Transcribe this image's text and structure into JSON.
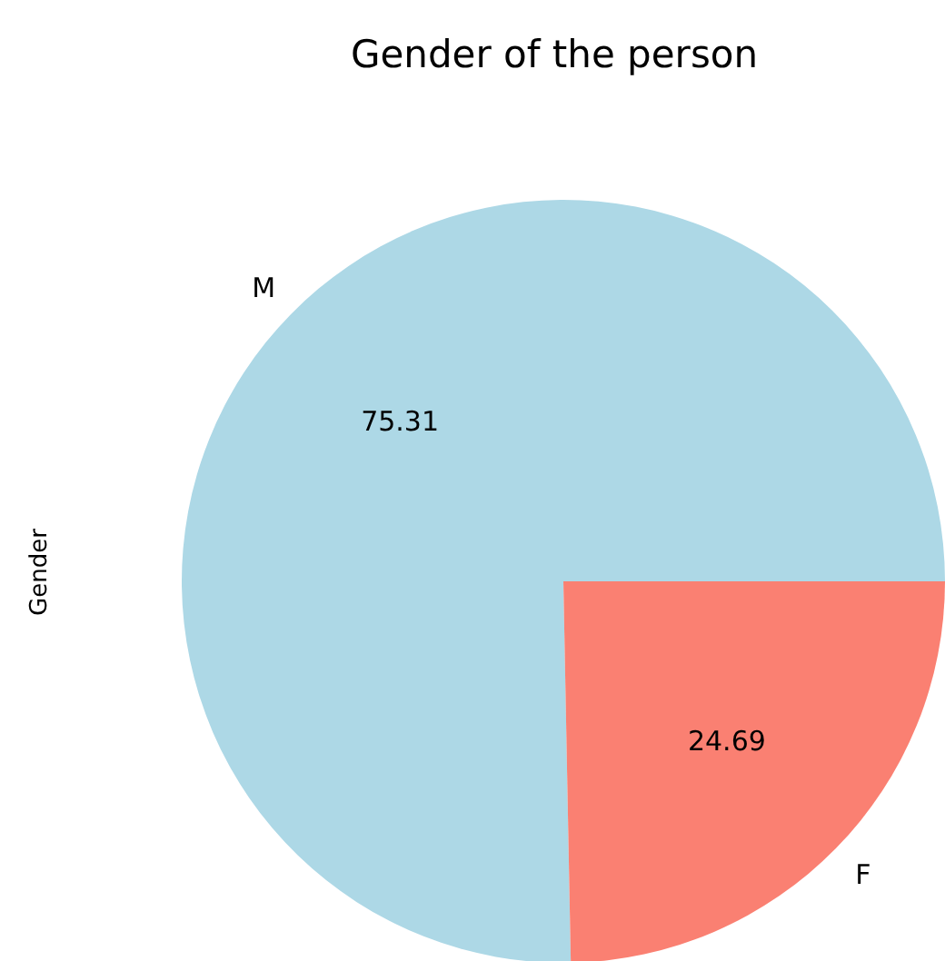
{
  "chart_data": {
    "type": "pie",
    "title": "Gender of the person",
    "ylabel": "Gender",
    "categories": [
      "M",
      "F"
    ],
    "values": [
      75.31,
      24.69
    ],
    "colors": [
      "#add8e6",
      "#fa8072"
    ],
    "data_labels": true,
    "legend": false
  }
}
